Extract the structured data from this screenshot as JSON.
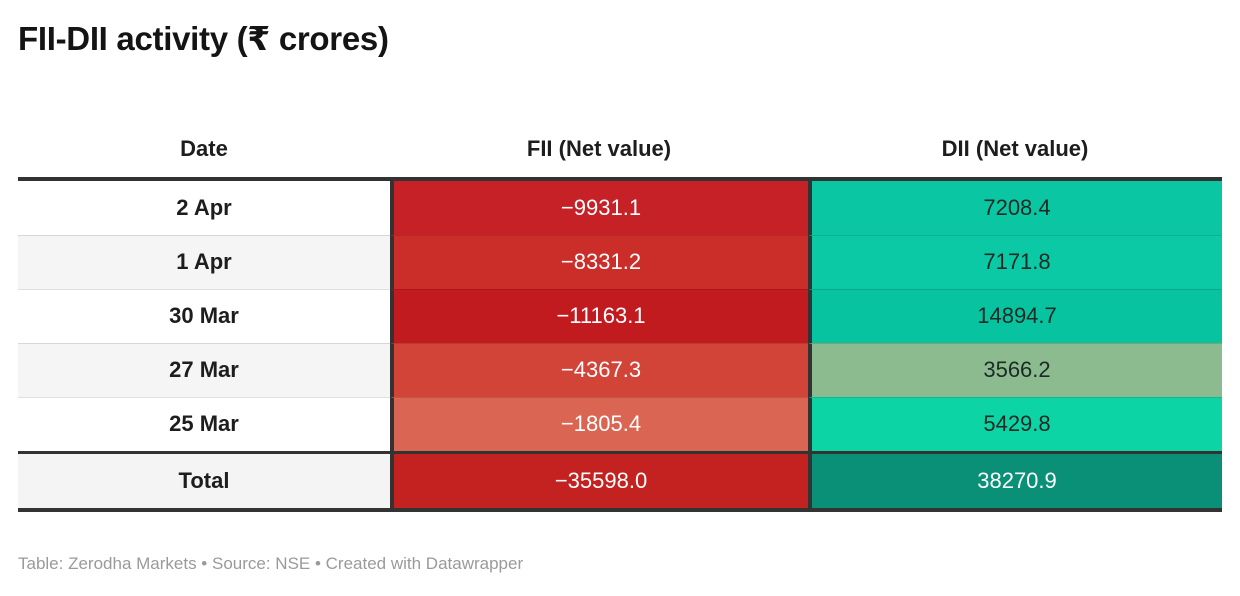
{
  "title": "FII-DII activity (₹ crores)",
  "header": {
    "date": "Date",
    "fii": "FII (Net value)",
    "dii": "DII (Net value)"
  },
  "colors": {
    "border_dark": "#333333",
    "date_row_white": "#ffffff",
    "date_row_alt": "#f5f5f5",
    "row_divider": "rgba(0,0,0,0.12)",
    "footer_text": "#9a9a9a"
  },
  "table": {
    "rows": [
      {
        "date": "2 Apr",
        "fii": "−9931.1",
        "dii": "7208.4",
        "date_bg": "#ffffff",
        "fii_bg": "#c52127",
        "fii_color": "#ffffff",
        "dii_bg": "#0bc6a3",
        "dii_color": "#1d2a26"
      },
      {
        "date": "1 Apr",
        "fii": "−8331.2",
        "dii": "7171.8",
        "date_bg": "#f5f5f5",
        "fii_bg": "#cb2d28",
        "fii_color": "#ffffff",
        "dii_bg": "#0cc9a6",
        "dii_color": "#1d2a26"
      },
      {
        "date": "30 Mar",
        "fii": "−11163.1",
        "dii": "14894.7",
        "date_bg": "#ffffff",
        "fii_bg": "#c11b20",
        "fii_color": "#ffffff",
        "dii_bg": "#08c3a0",
        "dii_color": "#1d2a26"
      },
      {
        "date": "27 Mar",
        "fii": "−4367.3",
        "dii": "3566.2",
        "date_bg": "#f5f5f5",
        "fii_bg": "#d24338",
        "fii_color": "#ffffff",
        "dii_bg": "#8cbb90",
        "dii_color": "#1d2a26"
      },
      {
        "date": "25 Mar",
        "fii": "−1805.4",
        "dii": "5429.8",
        "date_bg": "#ffffff",
        "fii_bg": "#da6553",
        "fii_color": "#ffffff",
        "dii_bg": "#0cd4a5",
        "dii_color": "#1d2a26"
      }
    ],
    "total": {
      "label": "Total",
      "fii": "−35598.0",
      "dii": "38270.9",
      "date_bg": "#f4f4f4",
      "fii_bg": "#c42220",
      "fii_color": "#ffffff",
      "dii_bg": "#0a9077",
      "dii_color": "#ffffff"
    }
  },
  "footer": {
    "text": "Table: Zerodha Markets • Source: NSE • Created with Datawrapper"
  },
  "chart_data": {
    "type": "table",
    "title": "FII-DII activity (₹ crores)",
    "columns": [
      "Date",
      "FII (Net value)",
      "DII (Net value)"
    ],
    "rows": [
      {
        "date": "2 Apr",
        "fii": -9931.1,
        "dii": 7208.4
      },
      {
        "date": "1 Apr",
        "fii": -8331.2,
        "dii": 7171.8
      },
      {
        "date": "30 Mar",
        "fii": -11163.1,
        "dii": 14894.7
      },
      {
        "date": "27 Mar",
        "fii": -4367.3,
        "dii": 3566.2
      },
      {
        "date": "25 Mar",
        "fii": -1805.4,
        "dii": 5429.8
      }
    ],
    "total": {
      "fii": -35598.0,
      "dii": 38270.9
    },
    "styling": "heatmap cells: FII shades of red (more negative = darker), DII shades of green/teal (muted green for lowest value, dark teal for total)",
    "attribution": "Table: Zerodha Markets • Source: NSE • Created with Datawrapper"
  }
}
